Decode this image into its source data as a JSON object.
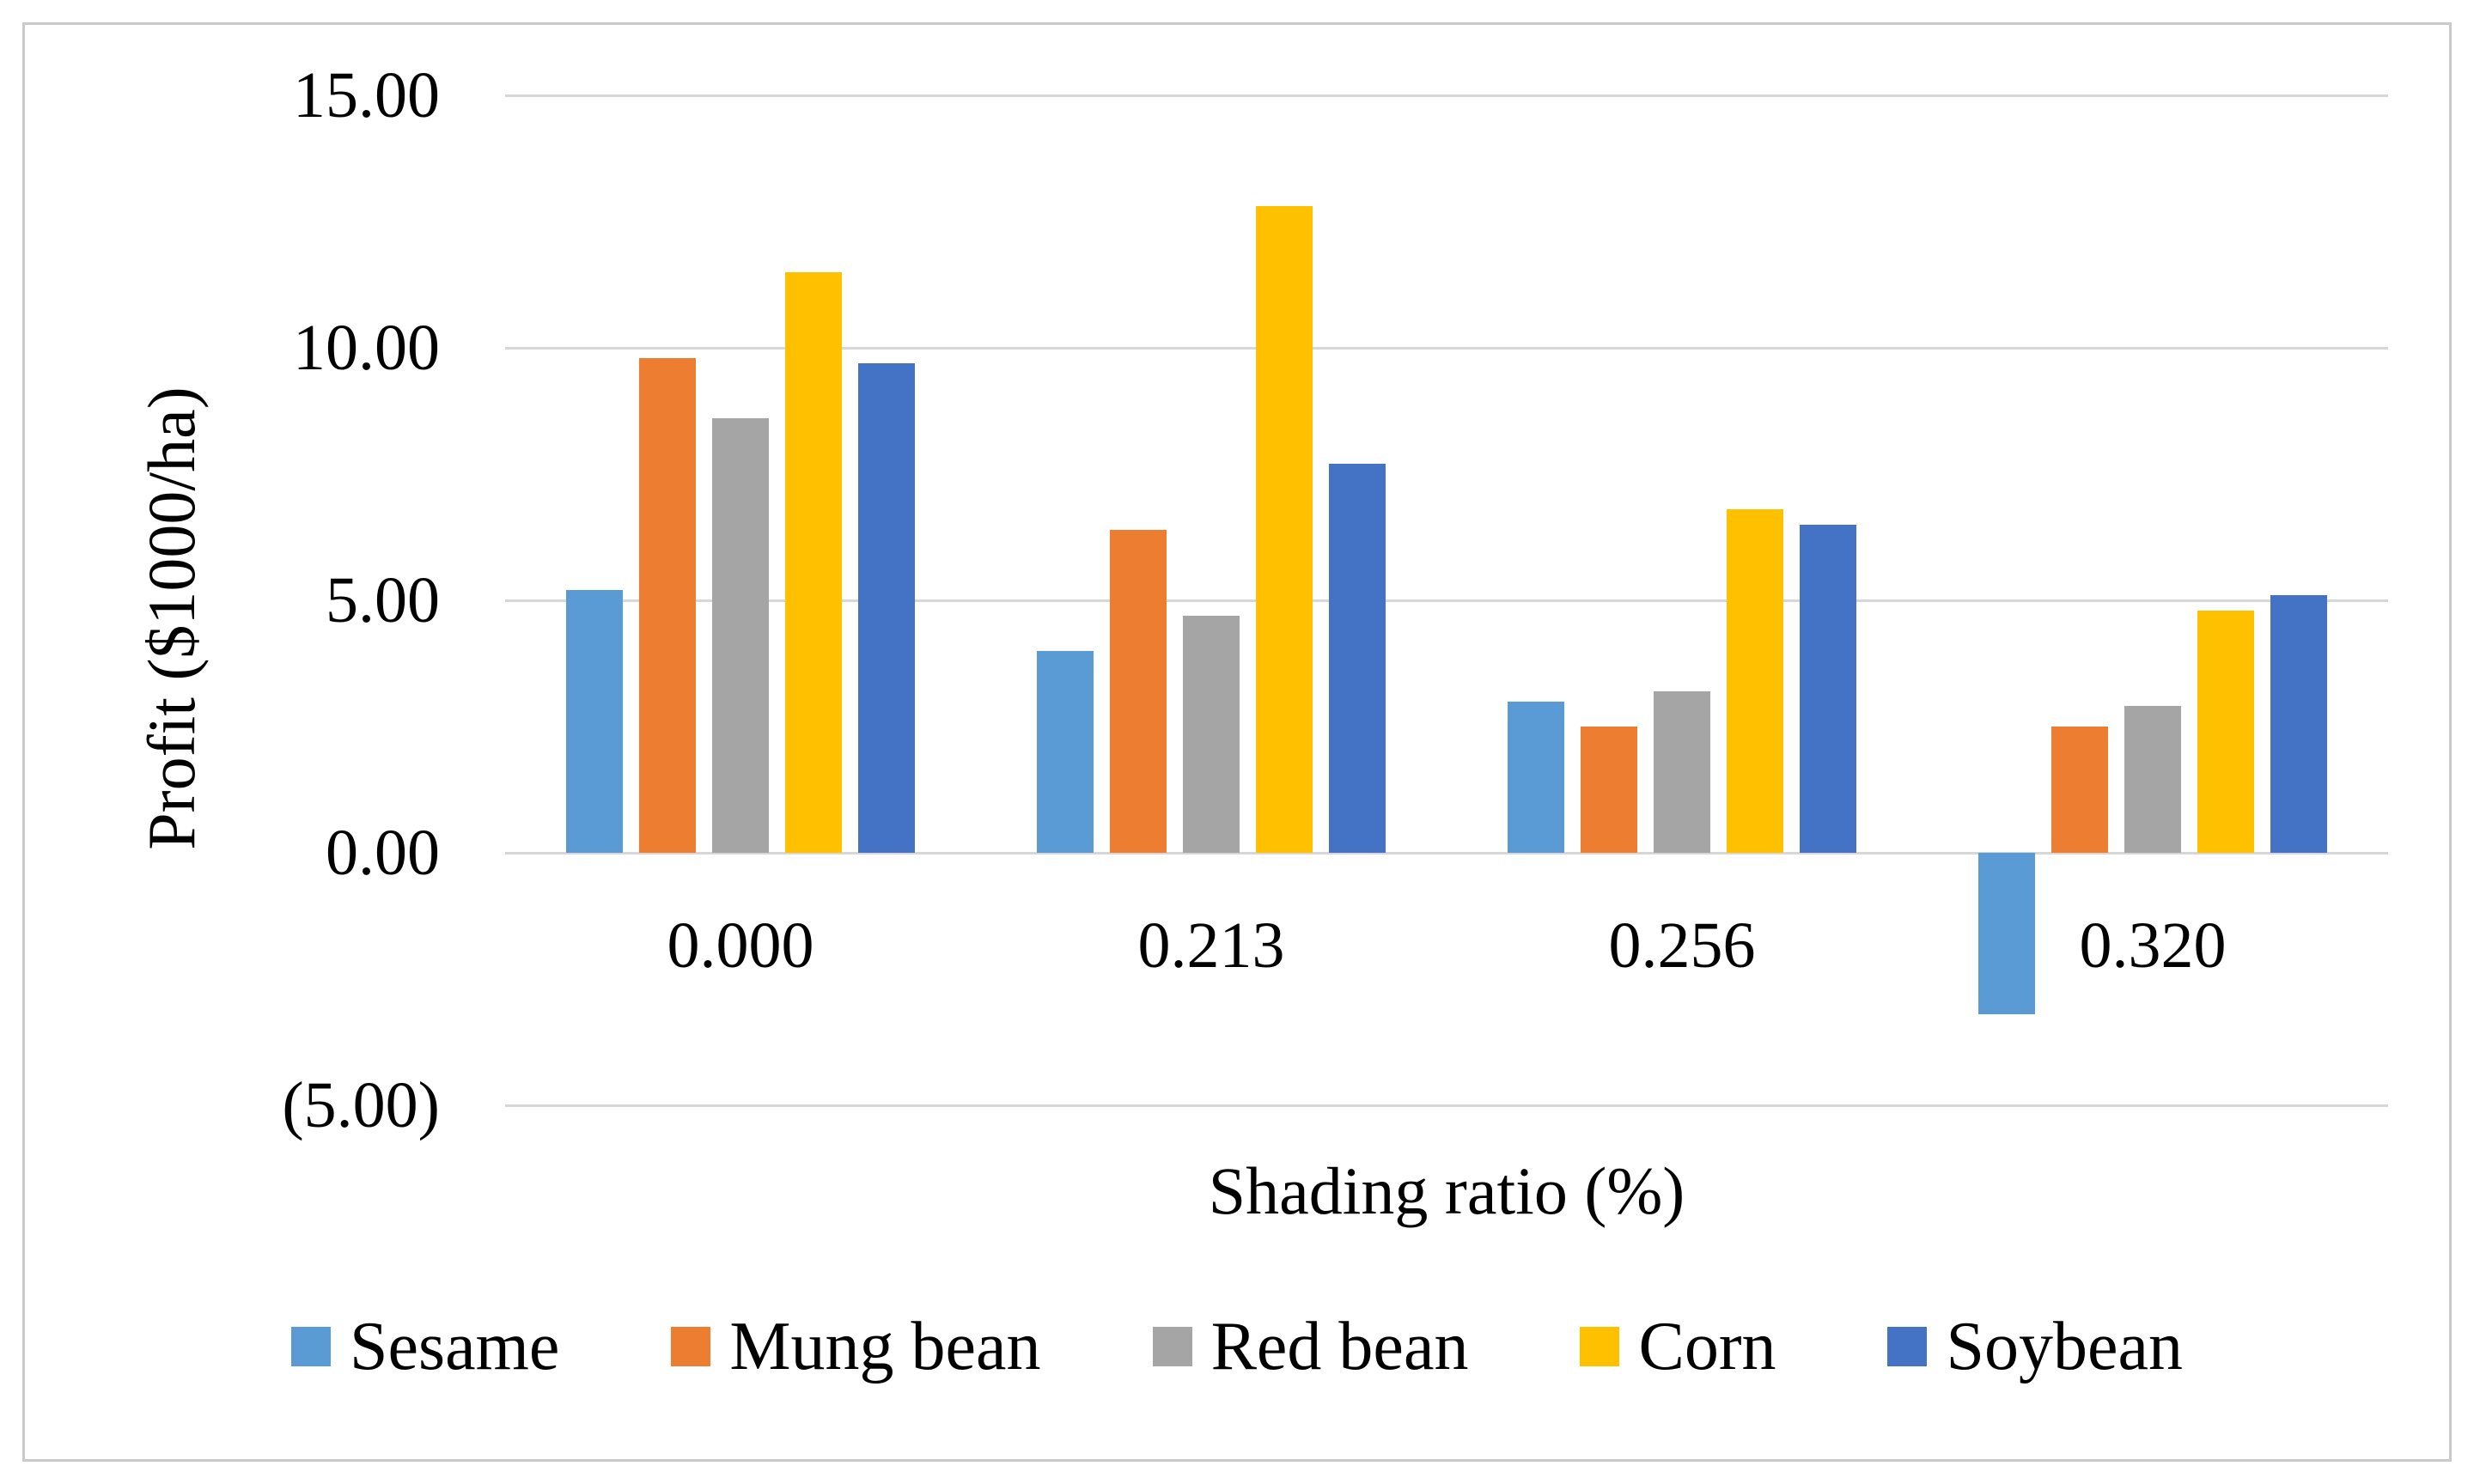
{
  "figure": {
    "background": "#ffffff",
    "border_color": "#c9c9c9"
  },
  "chart_data": {
    "type": "bar",
    "title": "",
    "xlabel": "Shading ratio (%)",
    "ylabel": "Profit ($1000/ha)",
    "categories": [
      "0.000",
      "0.213",
      "0.256",
      "0.320"
    ],
    "series": [
      {
        "name": "Sesame",
        "color": "#5B9BD5",
        "values": [
          5.2,
          4.0,
          3.0,
          -3.2
        ]
      },
      {
        "name": "Mung bean",
        "color": "#ED7D31",
        "values": [
          9.8,
          6.4,
          2.5,
          2.5
        ]
      },
      {
        "name": "Red bean",
        "color": "#A5A5A5",
        "values": [
          8.6,
          4.7,
          3.2,
          2.9
        ]
      },
      {
        "name": "Corn",
        "color": "#FFC000",
        "values": [
          11.5,
          12.8,
          6.8,
          4.8
        ]
      },
      {
        "name": "Soybean",
        "color": "#4472C4",
        "values": [
          9.7,
          7.7,
          6.5,
          5.1
        ]
      }
    ],
    "y_ticks": [
      {
        "value": 15,
        "label": "15.00"
      },
      {
        "value": 10,
        "label": "10.00"
      },
      {
        "value": 5,
        "label": "5.00"
      },
      {
        "value": 0,
        "label": "0.00"
      },
      {
        "value": -5,
        "label": "(5.00)"
      }
    ],
    "ylim": [
      -5,
      15
    ],
    "grid": true,
    "gridline_color": "#d7d7d7",
    "legend_position": "bottom"
  }
}
